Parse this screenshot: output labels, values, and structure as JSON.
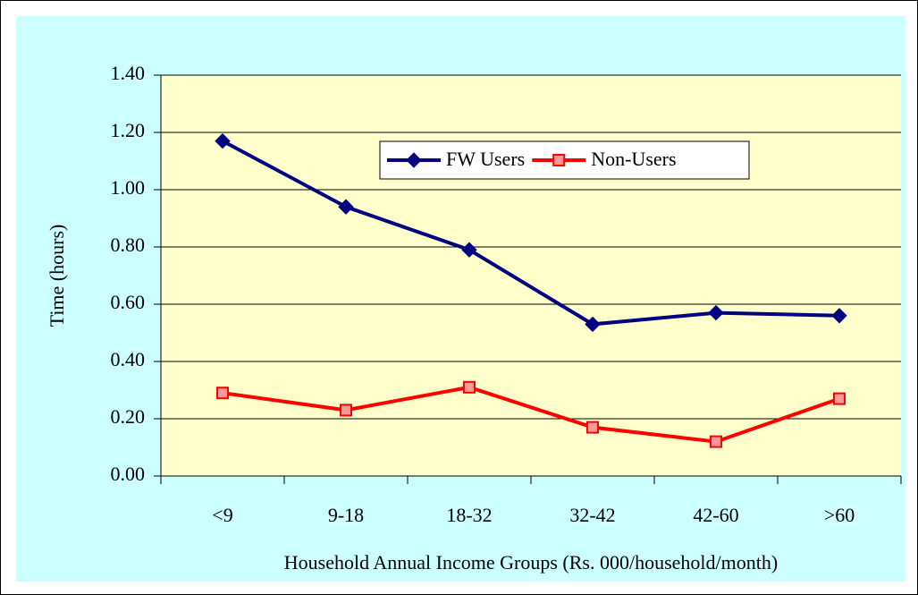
{
  "chart_data": {
    "type": "line",
    "x_label": "Household Annual Income Groups (Rs. 000/household/month)",
    "y_label": "Time (hours)",
    "categories": [
      "<9",
      "9-18",
      "18-32",
      "32-42",
      "42-60",
      ">60"
    ],
    "series": [
      {
        "name": "FW Users",
        "color": "#000080",
        "marker": "diamond",
        "values": [
          1.17,
          0.94,
          0.79,
          0.53,
          0.57,
          0.56
        ]
      },
      {
        "name": "Non-Users",
        "color": "#ff0000",
        "marker": "square",
        "values": [
          0.29,
          0.23,
          0.31,
          0.17,
          0.12,
          0.27
        ]
      }
    ],
    "ylim": [
      0,
      1.4
    ],
    "yticks": [
      {
        "value": 0,
        "label": "0.00"
      },
      {
        "value": 0.2,
        "label": "0.20"
      },
      {
        "value": 0.4,
        "label": "0.40"
      },
      {
        "value": 0.6,
        "label": "0.60"
      },
      {
        "value": 0.8,
        "label": "0.80"
      },
      {
        "value": 1.0,
        "label": "1.00"
      },
      {
        "value": 1.2,
        "label": "1.20"
      },
      {
        "value": 1.4,
        "label": "1.40"
      }
    ],
    "grid": true
  }
}
